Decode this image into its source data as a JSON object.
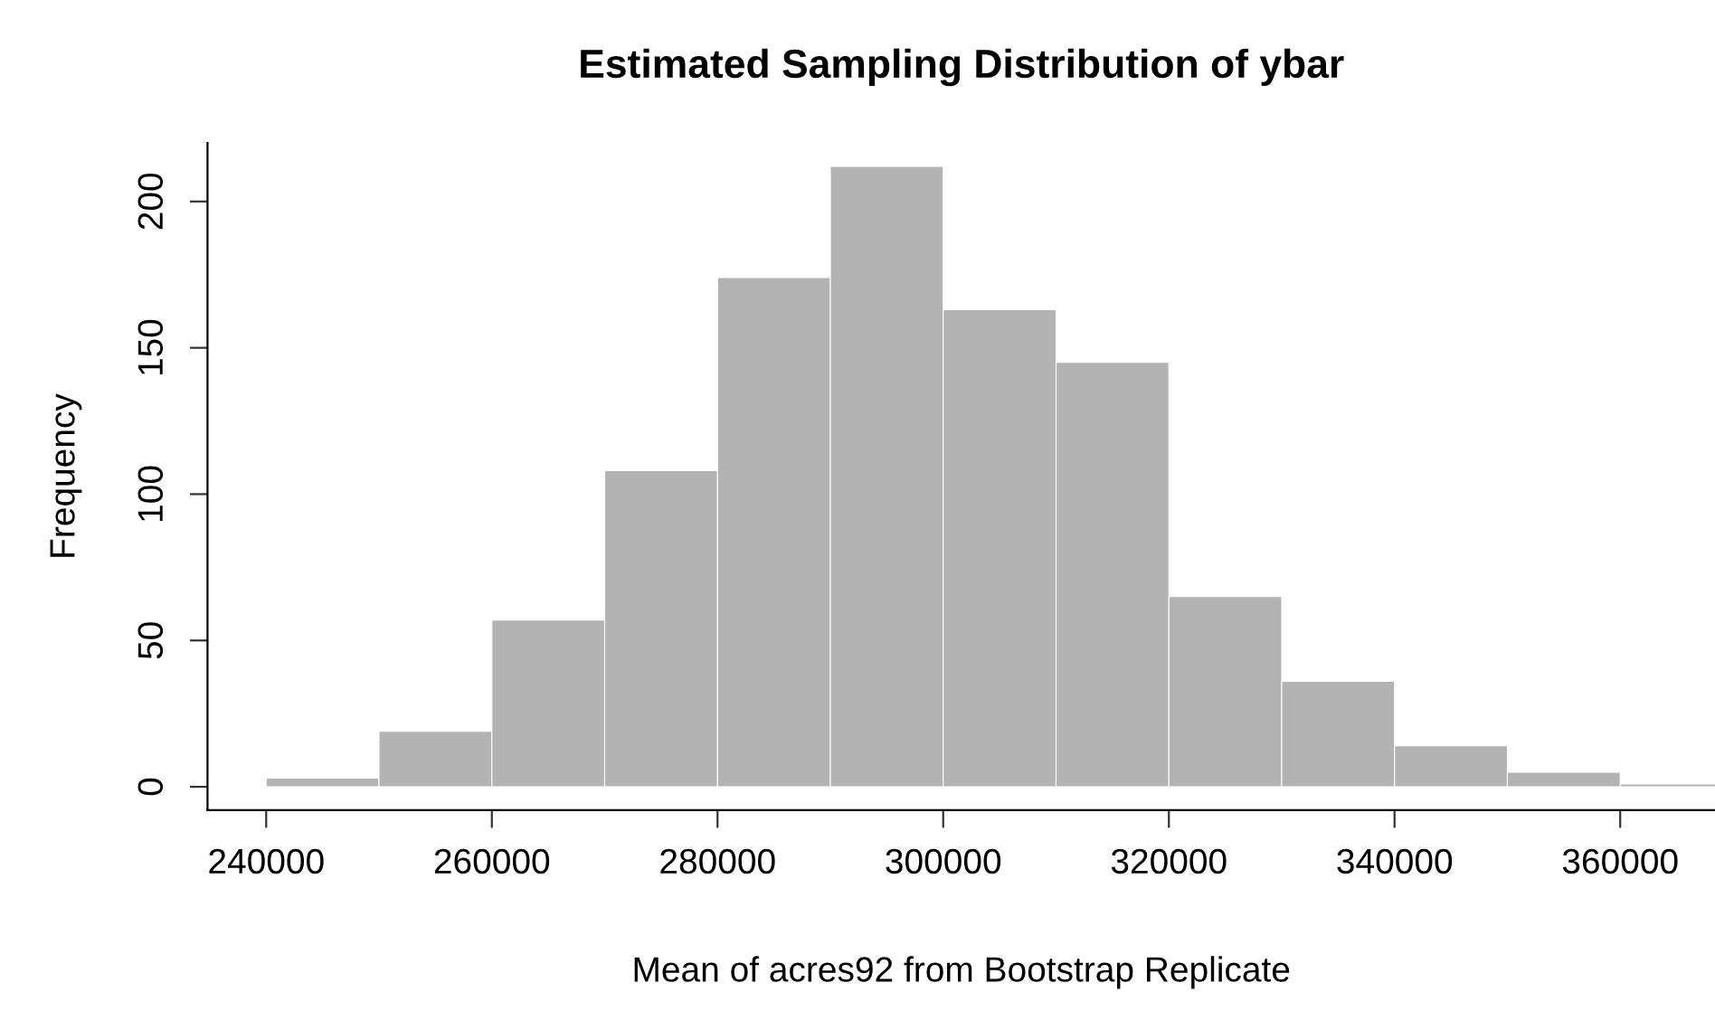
{
  "chart_data": {
    "type": "histogram",
    "title": "Estimated Sampling Distribution of ybar",
    "xlabel": "Mean of acres92 from Bootstrap Replicate",
    "ylabel": "Frequency",
    "bins": [
      240000,
      250000,
      260000,
      270000,
      280000,
      290000,
      300000,
      310000,
      320000,
      330000,
      340000,
      350000,
      360000,
      370000
    ],
    "values": [
      3,
      19,
      57,
      108,
      174,
      212,
      163,
      145,
      65,
      36,
      14,
      5,
      1
    ],
    "color": "#b3b3b3",
    "xlim": [
      234800,
      368400
    ],
    "xticks": [
      240000,
      260000,
      280000,
      300000,
      320000,
      340000,
      360000
    ],
    "ylim": [
      -8,
      220
    ],
    "yticks": [
      0,
      50,
      100,
      150,
      200
    ],
    "grid": false
  }
}
